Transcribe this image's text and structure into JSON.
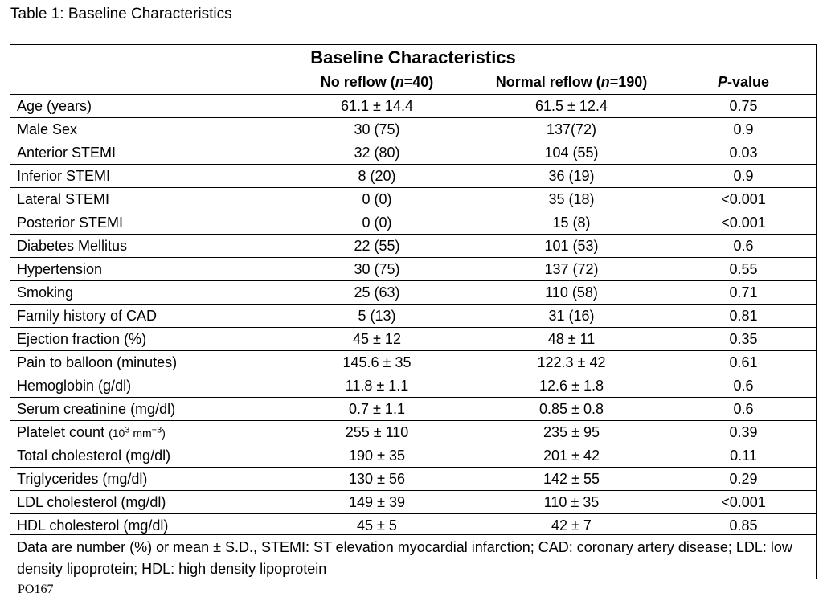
{
  "caption": "Table 1: Baseline Characteristics",
  "table": {
    "title": "Baseline Characteristics",
    "headers": {
      "col1_prefix": "No reflow (",
      "col1_n": "n",
      "col1_suffix": "=40)",
      "col2_prefix": "Normal reflow (",
      "col2_n": "n",
      "col2_suffix": "=190)",
      "col3_p": "P",
      "col3_suffix": "-value"
    },
    "rows": [
      {
        "label": "Age (years)",
        "no_reflow": "61.1 ± 14.4",
        "normal_reflow": "61.5 ± 12.4",
        "p_value": "0.75"
      },
      {
        "label": "Male Sex",
        "no_reflow": "30 (75)",
        "normal_reflow": "137(72)",
        "p_value": "0.9"
      },
      {
        "label": "Anterior STEMI",
        "no_reflow": "32 (80)",
        "normal_reflow": "104 (55)",
        "p_value": "0.03"
      },
      {
        "label": "Inferior STEMI",
        "no_reflow": "8 (20)",
        "normal_reflow": "36 (19)",
        "p_value": "0.9"
      },
      {
        "label": "Lateral STEMI",
        "no_reflow": "0 (0)",
        "normal_reflow": "35 (18)",
        "p_value": "<0.001"
      },
      {
        "label": "Posterior STEMI",
        "no_reflow": "0 (0)",
        "normal_reflow": "15 (8)",
        "p_value": "<0.001"
      },
      {
        "label": "Diabetes Mellitus",
        "no_reflow": "22 (55)",
        "normal_reflow": "101 (53)",
        "p_value": "0.6"
      },
      {
        "label": "Hypertension",
        "no_reflow": "30 (75)",
        "normal_reflow": "137 (72)",
        "p_value": "0.55"
      },
      {
        "label": "Smoking",
        "no_reflow": "25 (63)",
        "normal_reflow": "110 (58)",
        "p_value": "0.71"
      },
      {
        "label": "Family history of CAD",
        "no_reflow": "5 (13)",
        "normal_reflow": "31 (16)",
        "p_value": "0.81"
      },
      {
        "label": "Ejection fraction (%)",
        "no_reflow": "45 ± 12",
        "normal_reflow": "48 ± 11",
        "p_value": "0.35"
      },
      {
        "label": "Pain to balloon (minutes)",
        "no_reflow": "145.6 ± 35",
        "normal_reflow": "122.3 ± 42",
        "p_value": "0.61"
      },
      {
        "label": "Hemoglobin (g/dl)",
        "no_reflow": "11.8 ± 1.1",
        "normal_reflow": "12.6 ± 1.8",
        "p_value": "0.6"
      },
      {
        "label": "Serum creatinine (mg/dl)",
        "no_reflow": "0.7 ± 1.1",
        "normal_reflow": "0.85 ± 0.8",
        "p_value": "0.6"
      },
      {
        "label": "Platelet count",
        "label_unit": "(10",
        "label_unit_sup": "3",
        "label_unit_mid": " mm",
        "label_unit_sup2": "−3",
        "label_unit_end": ")",
        "no_reflow": "255 ± 110",
        "normal_reflow": "235 ± 95",
        "p_value": "0.39"
      },
      {
        "label": "Total cholesterol (mg/dl)",
        "no_reflow": "190 ± 35",
        "normal_reflow": "201 ± 42",
        "p_value": "0.11"
      },
      {
        "label": "Triglycerides (mg/dl)",
        "no_reflow": "130 ± 56",
        "normal_reflow": "142 ± 55",
        "p_value": "0.29"
      },
      {
        "label": "LDL cholesterol (mg/dl)",
        "no_reflow": "149 ± 39",
        "normal_reflow": "110 ± 35",
        "p_value": "<0.001"
      },
      {
        "label": "HDL cholesterol (mg/dl)",
        "no_reflow": "45 ± 5",
        "normal_reflow": "42 ± 7",
        "p_value": "0.85"
      }
    ],
    "footnote": "Data are number (%) or mean ± S.D., STEMI: ST elevation myocardial infarction; CAD: coronary artery disease; LDL: low density lipoprotein; HDL: high density lipoprotein"
  },
  "page_tag": "PO167"
}
